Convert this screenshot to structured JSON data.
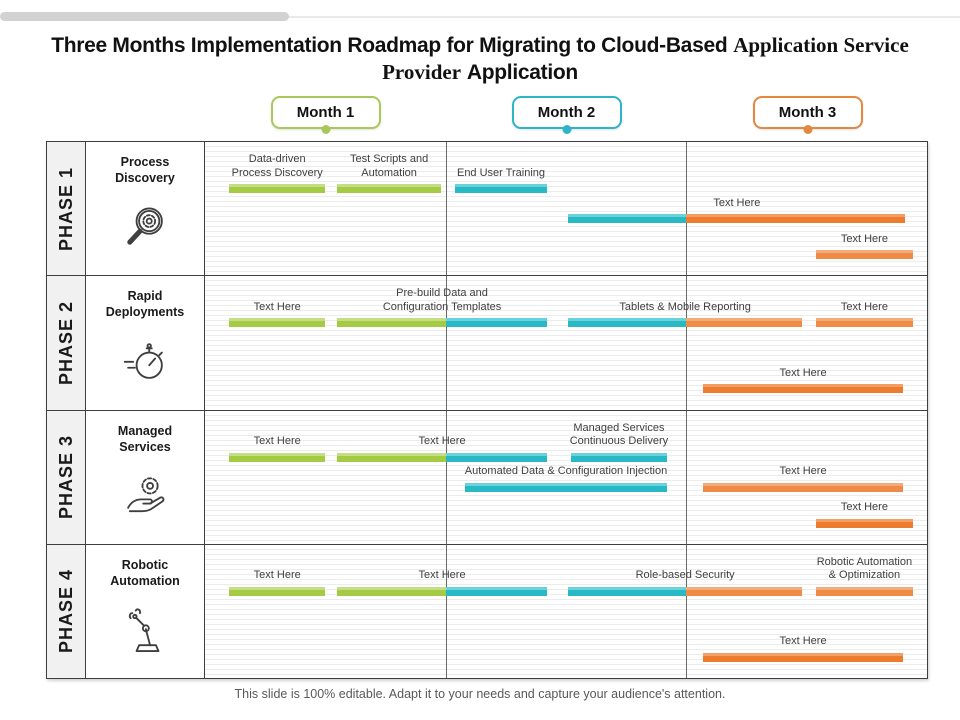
{
  "title": {
    "sans_lead": "Three Months Implementation Roadmap for Migrating to Cloud-Based",
    "serif_mid": "Application Service Provider",
    "sans_tail": "Application"
  },
  "months": [
    {
      "label": "Month 1",
      "color": "#a9c85b",
      "center_unit": 0.5
    },
    {
      "label": "Month 2",
      "color": "#2fb3c7",
      "center_unit": 1.5
    },
    {
      "label": "Month 3",
      "color": "#e2883f",
      "center_unit": 2.5
    }
  ],
  "colors": {
    "green": "#a5cb45",
    "teal": "#28b9c4",
    "orange": "#ec7c2e",
    "orangeLight": "#ee8c47",
    "table_border": "#3f3f3f",
    "ruled_line": "#ececec",
    "phase_cell_bg": "#f1f1f1",
    "footer_text": "#595959"
  },
  "phases": [
    {
      "label": "PHASE 1",
      "name": "Process Discovery",
      "icon": "magnifier-gear-icon",
      "bars": [
        {
          "row": 0,
          "label_lines": [
            "Data-driven",
            "Process Discovery"
          ],
          "segments": [
            {
              "color": "green",
              "start": 0.1,
              "end": 0.5
            }
          ]
        },
        {
          "row": 0,
          "label_lines": [
            "Test Scripts and",
            "Automation"
          ],
          "segments": [
            {
              "color": "green",
              "start": 0.55,
              "end": 0.98
            }
          ]
        },
        {
          "row": 0,
          "label_lines": [
            "End User Training"
          ],
          "segments": [
            {
              "color": "teal",
              "start": 1.04,
              "end": 1.42
            }
          ]
        },
        {
          "row": 1,
          "label_lines": [
            "Text Here"
          ],
          "segments": [
            {
              "color": "teal",
              "start": 1.51,
              "end": 2.0
            },
            {
              "color": "orange",
              "start": 2.0,
              "end": 2.91
            }
          ]
        },
        {
          "row": 2,
          "label_lines": [
            "Text Here"
          ],
          "segments": [
            {
              "color": "orangeLight",
              "start": 2.54,
              "end": 2.94
            }
          ]
        }
      ]
    },
    {
      "label": "PHASE 2",
      "name": "Rapid Deployments",
      "icon": "stopwatch-icon",
      "bars": [
        {
          "row": 0,
          "label_lines": [
            "Text Here"
          ],
          "segments": [
            {
              "color": "green",
              "start": 0.1,
              "end": 0.5
            }
          ]
        },
        {
          "row": 0,
          "label_lines": [
            "Pre-build Data and",
            "Configuration Templates"
          ],
          "segments": [
            {
              "color": "green",
              "start": 0.55,
              "end": 1.0
            },
            {
              "color": "teal",
              "start": 1.0,
              "end": 1.42
            }
          ]
        },
        {
          "row": 0,
          "label_lines": [
            "Tablets & Mobile Reporting"
          ],
          "segments": [
            {
              "color": "teal",
              "start": 1.51,
              "end": 2.0
            },
            {
              "color": "orangeLight",
              "start": 2.0,
              "end": 2.48
            }
          ]
        },
        {
          "row": 0,
          "label_lines": [
            "Text Here"
          ],
          "segments": [
            {
              "color": "orangeLight",
              "start": 2.54,
              "end": 2.94
            }
          ]
        },
        {
          "row": 2,
          "label_lines": [
            "Text Here"
          ],
          "segments": [
            {
              "color": "orange",
              "start": 2.07,
              "end": 2.9
            }
          ]
        }
      ]
    },
    {
      "label": "PHASE 3",
      "name": "Managed Services",
      "icon": "hand-gear-icon",
      "bars": [
        {
          "row": 0,
          "label_lines": [
            "Text Here"
          ],
          "segments": [
            {
              "color": "green",
              "start": 0.1,
              "end": 0.5
            }
          ]
        },
        {
          "row": 0,
          "label_lines": [
            "Text Here"
          ],
          "segments": [
            {
              "color": "green",
              "start": 0.55,
              "end": 1.0
            },
            {
              "color": "teal",
              "start": 1.0,
              "end": 1.42
            }
          ]
        },
        {
          "row": 0,
          "label_lines": [
            "Managed Services",
            "Continuous Delivery"
          ],
          "segments": [
            {
              "color": "teal",
              "start": 1.52,
              "end": 1.92
            }
          ]
        },
        {
          "row": 1,
          "label_lines": [
            "Automated Data & Configuration Injection"
          ],
          "segments": [
            {
              "color": "teal",
              "start": 1.08,
              "end": 1.92
            }
          ]
        },
        {
          "row": 1,
          "label_lines": [
            "Text Here"
          ],
          "segments": [
            {
              "color": "orangeLight",
              "start": 2.07,
              "end": 2.9
            }
          ]
        },
        {
          "row": 2,
          "label_lines": [
            "Text Here"
          ],
          "segments": [
            {
              "color": "orange",
              "start": 2.54,
              "end": 2.94
            }
          ]
        }
      ]
    },
    {
      "label": "PHASE 4",
      "name": "Robotic Automation",
      "icon": "robot-arm-icon",
      "bars": [
        {
          "row": 0,
          "label_lines": [
            "Text Here"
          ],
          "segments": [
            {
              "color": "green",
              "start": 0.1,
              "end": 0.5
            }
          ]
        },
        {
          "row": 0,
          "label_lines": [
            "Text Here"
          ],
          "segments": [
            {
              "color": "green",
              "start": 0.55,
              "end": 1.0
            },
            {
              "color": "teal",
              "start": 1.0,
              "end": 1.42
            }
          ]
        },
        {
          "row": 0,
          "label_lines": [
            "Role-based Security"
          ],
          "segments": [
            {
              "color": "teal",
              "start": 1.51,
              "end": 2.0
            },
            {
              "color": "orangeLight",
              "start": 2.0,
              "end": 2.48
            }
          ]
        },
        {
          "row": 0,
          "label_lines": [
            "Robotic Automation",
            "& Optimization"
          ],
          "segments": [
            {
              "color": "orangeLight",
              "start": 2.54,
              "end": 2.94
            }
          ]
        },
        {
          "row": 2,
          "label_lines": [
            "Text Here"
          ],
          "segments": [
            {
              "color": "orange",
              "start": 2.07,
              "end": 2.9
            }
          ]
        }
      ]
    }
  ],
  "footer": "This slide is 100% editable. Adapt it to your needs and capture your audience's attention."
}
